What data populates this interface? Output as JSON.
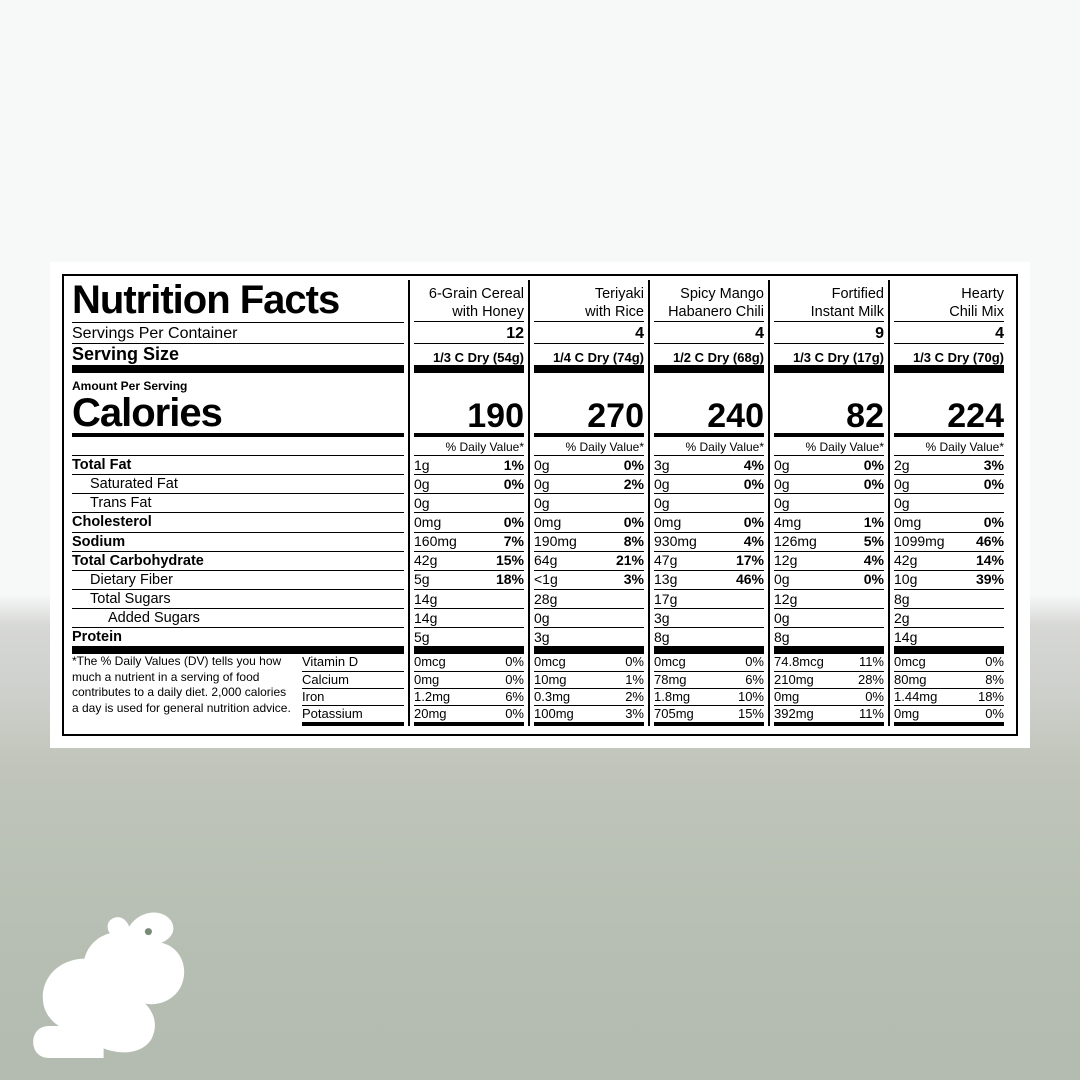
{
  "title": "Nutrition Facts",
  "servingsLabel": "Servings Per Container",
  "servingSizeLabel": "Serving Size",
  "amountPerServing": "Amount Per Serving",
  "caloriesLabel": "Calories",
  "dailyValueLabel": "% Daily Value*",
  "footnote": "*The % Daily Values (DV) tells you how much a nutrient in a serving of food contributes to a daily diet. 2,000 calories a day is used for general nutrition advice.",
  "products": [
    {
      "name": "6-Grain Cereal with Honey",
      "servings": "12",
      "servingSize": "1/3 C Dry (54g)",
      "calories": "190"
    },
    {
      "name": "Teriyaki with Rice",
      "servings": "4",
      "servingSize": "1/4 C Dry (74g)",
      "calories": "270"
    },
    {
      "name": "Spicy Mango Habanero Chili",
      "servings": "4",
      "servingSize": "1/2 C Dry (68g)",
      "calories": "240"
    },
    {
      "name": "Fortified Instant Milk",
      "servings": "9",
      "servingSize": "1/3 C Dry (17g)",
      "calories": "82"
    },
    {
      "name": "Hearty Chili Mix",
      "servings": "4",
      "servingSize": "1/3 C Dry (70g)",
      "calories": "224"
    }
  ],
  "nutrients": [
    {
      "label": "Total Fat",
      "bold": true,
      "indent": 0,
      "vals": [
        [
          "1g",
          "1%"
        ],
        [
          "0g",
          "0%"
        ],
        [
          "3g",
          "4%"
        ],
        [
          "0g",
          "0%"
        ],
        [
          "2g",
          "3%"
        ]
      ]
    },
    {
      "label": "Saturated Fat",
      "bold": false,
      "indent": 1,
      "vals": [
        [
          "0g",
          "0%"
        ],
        [
          "0g",
          "2%"
        ],
        [
          "0g",
          "0%"
        ],
        [
          "0g",
          "0%"
        ],
        [
          "0g",
          "0%"
        ]
      ]
    },
    {
      "label": "Trans Fat",
      "bold": false,
      "indent": 1,
      "vals": [
        [
          "0g",
          ""
        ],
        [
          "0g",
          ""
        ],
        [
          "0g",
          ""
        ],
        [
          "0g",
          ""
        ],
        [
          "0g",
          ""
        ]
      ]
    },
    {
      "label": "Cholesterol",
      "bold": true,
      "indent": 0,
      "vals": [
        [
          "0mg",
          "0%"
        ],
        [
          "0mg",
          "0%"
        ],
        [
          "0mg",
          "0%"
        ],
        [
          "4mg",
          "1%"
        ],
        [
          "0mg",
          "0%"
        ]
      ]
    },
    {
      "label": "Sodium",
      "bold": true,
      "indent": 0,
      "vals": [
        [
          "160mg",
          "7%"
        ],
        [
          "190mg",
          "8%"
        ],
        [
          "930mg",
          "4%"
        ],
        [
          "126mg",
          "5%"
        ],
        [
          "1099mg",
          "46%"
        ]
      ]
    },
    {
      "label": "Total Carbohydrate",
      "bold": true,
      "indent": 0,
      "vals": [
        [
          "42g",
          "15%"
        ],
        [
          "64g",
          "21%"
        ],
        [
          "47g",
          "17%"
        ],
        [
          "12g",
          "4%"
        ],
        [
          "42g",
          "14%"
        ]
      ]
    },
    {
      "label": "Dietary Fiber",
      "bold": false,
      "indent": 1,
      "vals": [
        [
          "5g",
          "18%"
        ],
        [
          "<1g",
          "3%"
        ],
        [
          "13g",
          "46%"
        ],
        [
          "0g",
          "0%"
        ],
        [
          "10g",
          "39%"
        ]
      ]
    },
    {
      "label": "Total Sugars",
      "bold": false,
      "indent": 1,
      "vals": [
        [
          "14g",
          ""
        ],
        [
          "28g",
          ""
        ],
        [
          "17g",
          ""
        ],
        [
          "12g",
          ""
        ],
        [
          "8g",
          ""
        ]
      ]
    },
    {
      "label": "Added Sugars",
      "bold": false,
      "indent": 2,
      "vals": [
        [
          "14g",
          ""
        ],
        [
          "0g",
          ""
        ],
        [
          "3g",
          ""
        ],
        [
          "0g",
          ""
        ],
        [
          "2g",
          ""
        ]
      ]
    },
    {
      "label": "Protein",
      "bold": true,
      "indent": 0,
      "vals": [
        [
          "5g",
          ""
        ],
        [
          "3g",
          ""
        ],
        [
          "8g",
          ""
        ],
        [
          "8g",
          ""
        ],
        [
          "14g",
          ""
        ]
      ]
    }
  ],
  "micros": [
    {
      "label": "Vitamin D",
      "vals": [
        [
          "0mcg",
          "0%"
        ],
        [
          "0mcg",
          "0%"
        ],
        [
          "0mcg",
          "0%"
        ],
        [
          "74.8mcg",
          "11%"
        ],
        [
          "0mcg",
          "0%"
        ]
      ]
    },
    {
      "label": "Calcium",
      "vals": [
        [
          "0mg",
          "0%"
        ],
        [
          "10mg",
          "1%"
        ],
        [
          "78mg",
          "6%"
        ],
        [
          "210mg",
          "28%"
        ],
        [
          "80mg",
          "8%"
        ]
      ]
    },
    {
      "label": "Iron",
      "vals": [
        [
          "1.2mg",
          "6%"
        ],
        [
          "0.3mg",
          "2%"
        ],
        [
          "1.8mg",
          "10%"
        ],
        [
          "0mg",
          "0%"
        ],
        [
          "1.44mg",
          "18%"
        ]
      ]
    },
    {
      "label": "Potassium",
      "vals": [
        [
          "20mg",
          "0%"
        ],
        [
          "100mg",
          "3%"
        ],
        [
          "705mg",
          "15%"
        ],
        [
          "392mg",
          "11%"
        ],
        [
          "0mg",
          "0%"
        ]
      ]
    }
  ],
  "colors": {
    "panel_bg": "#ffffff",
    "rule": "#000000"
  }
}
